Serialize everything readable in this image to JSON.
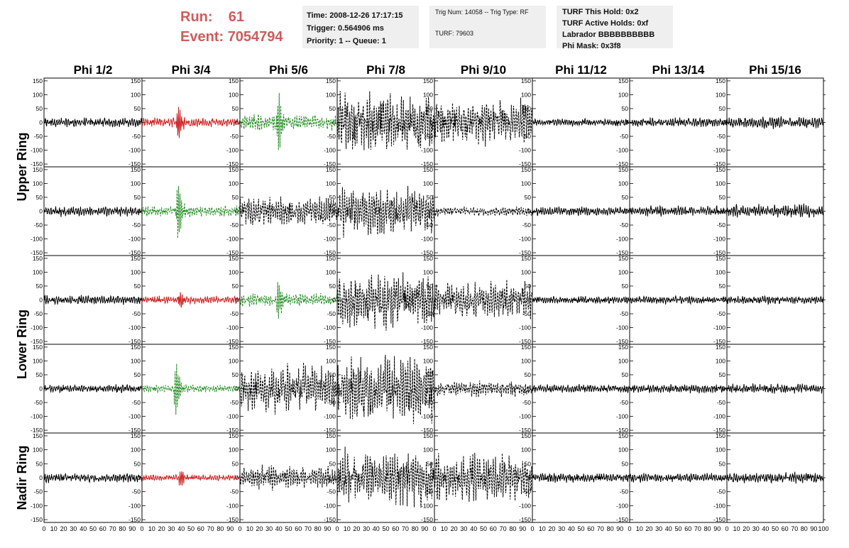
{
  "header": {
    "run_label": "Run:",
    "run_value": "61",
    "event_label": "Event:",
    "event_value": "7054794"
  },
  "info_boxes": {
    "time": "Time: 2008-12-26 17:17:15",
    "trigger": "Trigger: 0.564906 ms",
    "priority": "Priority: 1 -- Queue: 1",
    "trig_num": "Trig Num: 14058 -- Trig Type: RF",
    "turf": "TURF: 79603",
    "turf_hold": "TURF This Hold: 0x2",
    "turf_active": "TURF Active Holds: 0xf",
    "labrador": "Labrador BBBBBBBBBB",
    "phi_mask": "Phi Mask: 0x3f8"
  },
  "chart_data": {
    "type": "line",
    "columns": [
      "Phi 1/2",
      "Phi 3/4",
      "Phi 5/6",
      "Phi 7/8",
      "Phi 9/10",
      "Phi 11/12",
      "Phi 13/14",
      "Phi 15/16"
    ],
    "rows": [
      {
        "label": "Upper Ring",
        "span": 2
      },
      {
        "label": "Lower Ring",
        "span": 2
      },
      {
        "label": "Nadir Ring",
        "span": 1
      }
    ],
    "ylim": [
      -160,
      160
    ],
    "xlim": [
      0,
      100
    ],
    "y_ticks": [
      "150",
      "100",
      "50",
      "0",
      "-50",
      "-100",
      "-150"
    ],
    "x_ticks": [
      "0",
      "10",
      "20",
      "30",
      "40",
      "50",
      "60",
      "70",
      "80",
      "90",
      "100"
    ],
    "colors": {
      "normal": "#000000",
      "triggered": "#cc2222",
      "l1": "#228b22"
    },
    "panels": [
      [
        {
          "color": "normal",
          "style": "solid",
          "amp": 14,
          "pulse": 0
        },
        {
          "color": "triggered",
          "style": "solid",
          "amp": 15,
          "pulse": 70,
          "t0": 37
        },
        {
          "color": "l1",
          "style": "dashed",
          "amp": 25,
          "pulse": 110,
          "t0": 40
        },
        {
          "color": "normal",
          "style": "dashed",
          "amp": 95,
          "pulse": 0
        },
        {
          "color": "normal",
          "style": "dashed",
          "amp": 70,
          "pulse": 0
        },
        {
          "color": "normal",
          "style": "solid",
          "amp": 12,
          "pulse": 0
        },
        {
          "color": "normal",
          "style": "solid",
          "amp": 14,
          "pulse": 0
        },
        {
          "color": "normal",
          "style": "solid",
          "amp": 18,
          "pulse": 0
        }
      ],
      [
        {
          "color": "normal",
          "style": "solid",
          "amp": 16,
          "pulse": 0
        },
        {
          "color": "l1",
          "style": "dashed",
          "amp": 18,
          "pulse": 120,
          "t0": 37
        },
        {
          "color": "normal",
          "style": "dashed",
          "amp": 45,
          "pulse": 0
        },
        {
          "color": "normal",
          "style": "dashed",
          "amp": 75,
          "pulse": 0
        },
        {
          "color": "normal",
          "style": "dashed",
          "amp": 14,
          "pulse": 0
        },
        {
          "color": "normal",
          "style": "solid",
          "amp": 14,
          "pulse": 0
        },
        {
          "color": "normal",
          "style": "solid",
          "amp": 16,
          "pulse": 0
        },
        {
          "color": "normal",
          "style": "solid",
          "amp": 20,
          "pulse": 0
        }
      ],
      [
        {
          "color": "normal",
          "style": "solid",
          "amp": 14,
          "pulse": 0
        },
        {
          "color": "triggered",
          "style": "solid",
          "amp": 12,
          "pulse": 35,
          "t0": 39
        },
        {
          "color": "l1",
          "style": "dashed",
          "amp": 20,
          "pulse": 70,
          "t0": 40
        },
        {
          "color": "normal",
          "style": "dashed",
          "amp": 85,
          "pulse": 0
        },
        {
          "color": "normal",
          "style": "dashed",
          "amp": 55,
          "pulse": 0
        },
        {
          "color": "normal",
          "style": "solid",
          "amp": 12,
          "pulse": 0
        },
        {
          "color": "normal",
          "style": "solid",
          "amp": 12,
          "pulse": 0
        },
        {
          "color": "normal",
          "style": "solid",
          "amp": 12,
          "pulse": 0
        }
      ],
      [
        {
          "color": "normal",
          "style": "solid",
          "amp": 12,
          "pulse": 0
        },
        {
          "color": "l1",
          "style": "dashed",
          "amp": 12,
          "pulse": 100,
          "t0": 35
        },
        {
          "color": "normal",
          "style": "dashed",
          "amp": 75,
          "pulse": 0
        },
        {
          "color": "normal",
          "style": "dashed",
          "amp": 105,
          "pulse": 0
        },
        {
          "color": "normal",
          "style": "dashed",
          "amp": 25,
          "pulse": 0
        },
        {
          "color": "normal",
          "style": "solid",
          "amp": 12,
          "pulse": 0
        },
        {
          "color": "normal",
          "style": "solid",
          "amp": 14,
          "pulse": 0
        },
        {
          "color": "normal",
          "style": "solid",
          "amp": 15,
          "pulse": 0
        }
      ],
      [
        {
          "color": "normal",
          "style": "solid",
          "amp": 14,
          "pulse": 0
        },
        {
          "color": "triggered",
          "style": "solid",
          "amp": 10,
          "pulse": 35,
          "t0": 40
        },
        {
          "color": "normal",
          "style": "dashed",
          "amp": 35,
          "pulse": 0
        },
        {
          "color": "normal",
          "style": "dashed",
          "amp": 85,
          "pulse": 0
        },
        {
          "color": "normal",
          "style": "dashed",
          "amp": 75,
          "pulse": 0
        },
        {
          "color": "normal",
          "style": "solid",
          "amp": 15,
          "pulse": 0
        },
        {
          "color": "normal",
          "style": "solid",
          "amp": 14,
          "pulse": 0
        },
        {
          "color": "normal",
          "style": "solid",
          "amp": 16,
          "pulse": 0
        }
      ]
    ]
  }
}
